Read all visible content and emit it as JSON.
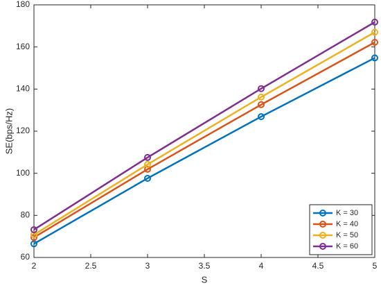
{
  "chart_data": {
    "type": "line",
    "xlabel": "S",
    "ylabel": "SE(bps/Hz)",
    "x": [
      2,
      3,
      4,
      5
    ],
    "series": [
      {
        "name": "K = 30",
        "color": "#0072bd",
        "values": [
          66.5,
          97.6,
          126.9,
          154.8
        ]
      },
      {
        "name": "K = 40",
        "color": "#d95319",
        "values": [
          69.5,
          101.9,
          132.6,
          162.2
        ]
      },
      {
        "name": "K = 50",
        "color": "#edb120",
        "values": [
          70.8,
          104.2,
          136.2,
          167.0
        ]
      },
      {
        "name": "K = 60",
        "color": "#7e2f8e",
        "values": [
          73.2,
          107.5,
          140.2,
          171.8
        ]
      }
    ],
    "xlim": [
      2,
      5
    ],
    "xticks": [
      2,
      2.5,
      3,
      3.5,
      4,
      4.5,
      5
    ],
    "ylim": [
      60,
      180
    ],
    "yticks": [
      60,
      80,
      100,
      120,
      140,
      160,
      180
    ],
    "grid": false,
    "legend": "lower right"
  }
}
